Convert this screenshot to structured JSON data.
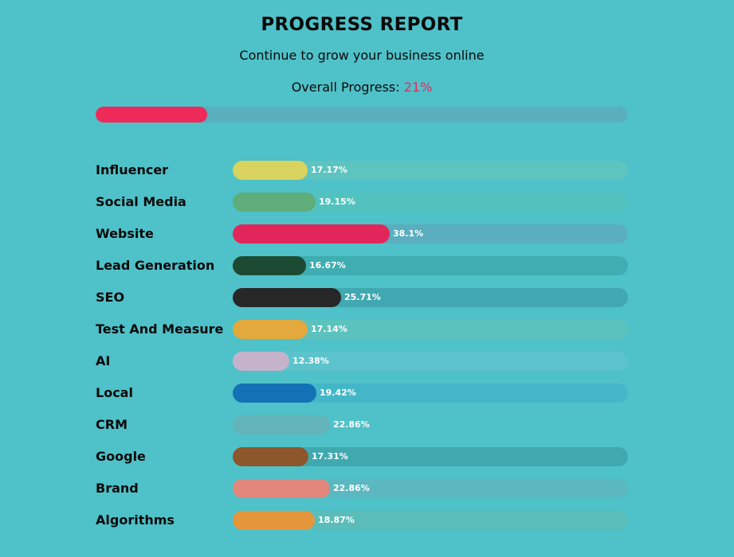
{
  "header": {
    "title": "PROGRESS REPORT",
    "subtitle": "Continue to grow your business online",
    "overall_label": "Overall Progress: ",
    "overall_value_text": "21%",
    "overall_percent": 21
  },
  "colors": {
    "background": "#4fc1c8",
    "overall_fill": "#ed2a5a",
    "accent_text": "#e8295c"
  },
  "categories": [
    {
      "label": "Influencer",
      "value_text": "17.17%",
      "percent": 17.17,
      "color": "#d9d35f",
      "track": "#5dc4bf"
    },
    {
      "label": "Social Media",
      "value_text": "19.15%",
      "percent": 19.15,
      "color": "#5fad7a",
      "track": "#52c2be"
    },
    {
      "label": "Website",
      "value_text": "38.1%",
      "percent": 38.1,
      "color": "#e2265a",
      "track": "#5aaebe"
    },
    {
      "label": "Lead Generation",
      "value_text": "16.67%",
      "percent": 16.67,
      "color": "#1d4a32",
      "track": "#3fadb1"
    },
    {
      "label": "SEO",
      "value_text": "25.71%",
      "percent": 25.71,
      "color": "#272727",
      "track": "#41a8b1"
    },
    {
      "label": "Test And Measure",
      "value_text": "17.14%",
      "percent": 17.14,
      "color": "#e3a93c",
      "track": "#5cc2bd"
    },
    {
      "label": "AI",
      "value_text": "12.38%",
      "percent": 12.38,
      "color": "#c5b3cb",
      "track": "#5cc3cc"
    },
    {
      "label": "Local",
      "value_text": "19.42%",
      "percent": 19.42,
      "color": "#1372b6",
      "track": "#43b7c8"
    },
    {
      "label": "CRM",
      "value_text": "22.86%",
      "percent": 22.86,
      "color": "#62b4b8",
      "track": "#4fc1c8"
    },
    {
      "label": "Google",
      "value_text": "17.31%",
      "percent": 17.31,
      "color": "#8e562b",
      "track": "#40a9b0"
    },
    {
      "label": "Brand",
      "value_text": "22.86%",
      "percent": 22.86,
      "color": "#e3867b",
      "track": "#5cb8c0"
    },
    {
      "label": "Algorithms",
      "value_text": "18.87%",
      "percent": 18.87,
      "color": "#e6963a",
      "track": "#5bbdba"
    }
  ]
}
